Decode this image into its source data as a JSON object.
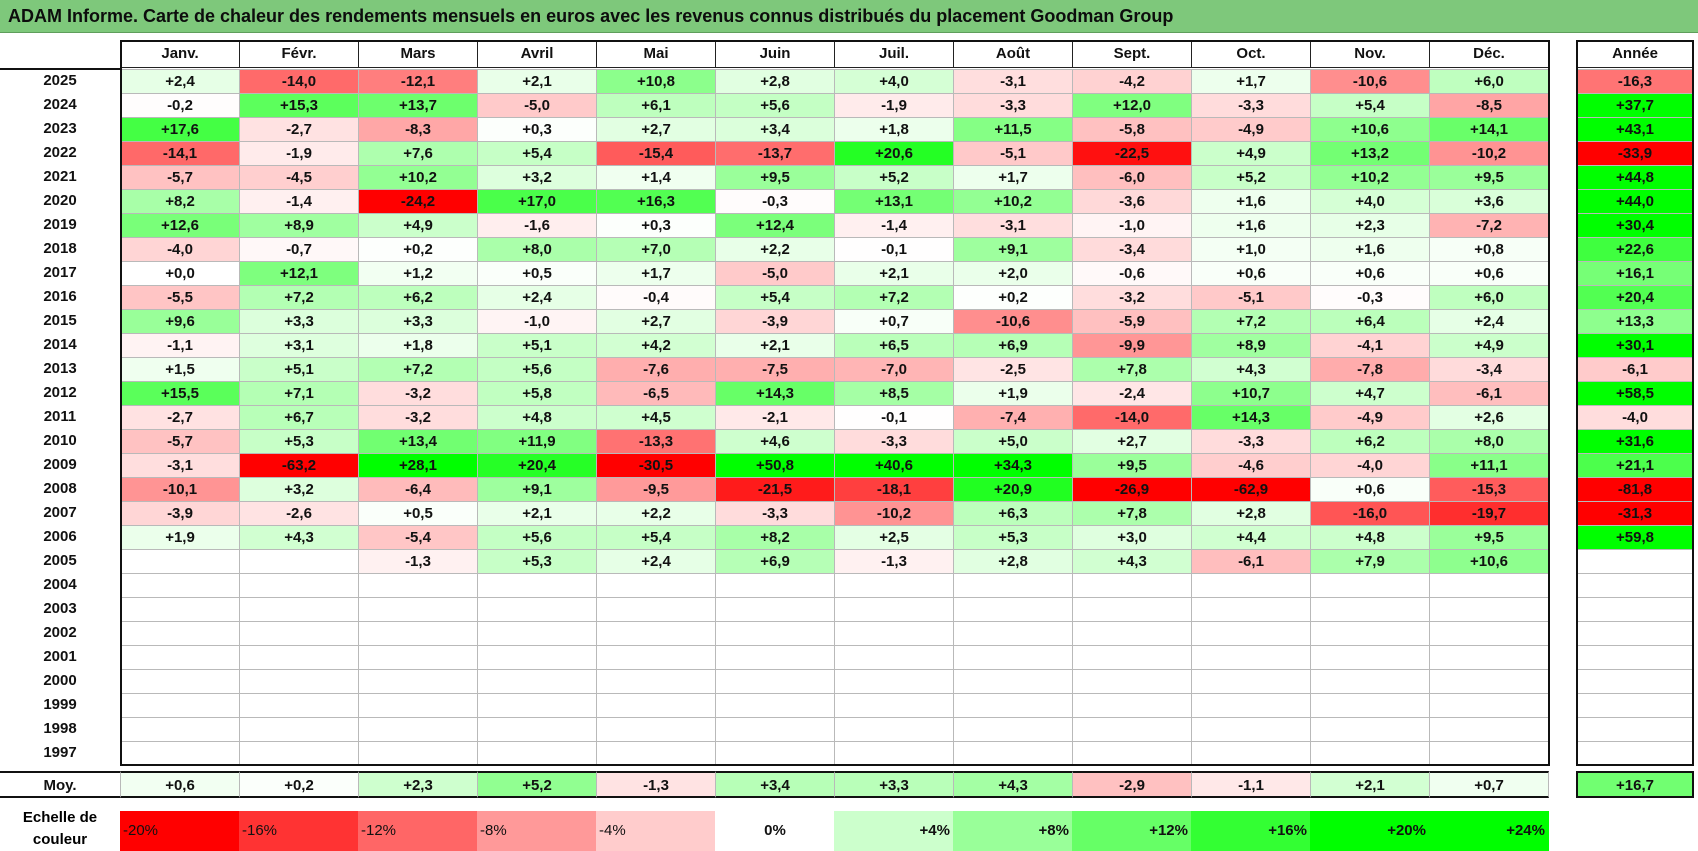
{
  "title": "ADAM Informe. Carte de chaleur des rendements mensuels en euros avec les revenus connus distribués du placement Goodman Group",
  "chart_data": {
    "type": "heatmap",
    "months": [
      "Janv.",
      "Févr.",
      "Mars",
      "Avril",
      "Mai",
      "Juin",
      "Juil.",
      "Août",
      "Sept.",
      "Oct.",
      "Nov.",
      "Déc."
    ],
    "annual_label": "Année",
    "rows": [
      {
        "year": "2025",
        "values": [
          "+2,4",
          "-14,0",
          "-12,1",
          "+2,1",
          "+10,8",
          "+2,8",
          "+4,0",
          "-3,1",
          "-4,2",
          "+1,7",
          "-10,6",
          "+6,0"
        ],
        "annual": "-16,3"
      },
      {
        "year": "2024",
        "values": [
          "-0,2",
          "+15,3",
          "+13,7",
          "-5,0",
          "+6,1",
          "+5,6",
          "-1,9",
          "-3,3",
          "+12,0",
          "-3,3",
          "+5,4",
          "-8,5"
        ],
        "annual": "+37,7"
      },
      {
        "year": "2023",
        "values": [
          "+17,6",
          "-2,7",
          "-8,3",
          "+0,3",
          "+2,7",
          "+3,4",
          "+1,8",
          "+11,5",
          "-5,8",
          "-4,9",
          "+10,6",
          "+14,1"
        ],
        "annual": "+43,1"
      },
      {
        "year": "2022",
        "values": [
          "-14,1",
          "-1,9",
          "+7,6",
          "+5,4",
          "-15,4",
          "-13,7",
          "+20,6",
          "-5,1",
          "-22,5",
          "+4,9",
          "+13,2",
          "-10,2"
        ],
        "annual": "-33,9"
      },
      {
        "year": "2021",
        "values": [
          "-5,7",
          "-4,5",
          "+10,2",
          "+3,2",
          "+1,4",
          "+9,5",
          "+5,2",
          "+1,7",
          "-6,0",
          "+5,2",
          "+10,2",
          "+9,5"
        ],
        "annual": "+44,8"
      },
      {
        "year": "2020",
        "values": [
          "+8,2",
          "-1,4",
          "-24,2",
          "+17,0",
          "+16,3",
          "-0,3",
          "+13,1",
          "+10,2",
          "-3,6",
          "+1,6",
          "+4,0",
          "+3,6"
        ],
        "annual": "+44,0"
      },
      {
        "year": "2019",
        "values": [
          "+12,6",
          "+8,9",
          "+4,9",
          "-1,6",
          "+0,3",
          "+12,4",
          "-1,4",
          "-3,1",
          "-1,0",
          "+1,6",
          "+2,3",
          "-7,2"
        ],
        "annual": "+30,4"
      },
      {
        "year": "2018",
        "values": [
          "-4,0",
          "-0,7",
          "+0,2",
          "+8,0",
          "+7,0",
          "+2,2",
          "-0,1",
          "+9,1",
          "-3,4",
          "+1,0",
          "+1,6",
          "+0,8"
        ],
        "annual": "+22,6"
      },
      {
        "year": "2017",
        "values": [
          "+0,0",
          "+12,1",
          "+1,2",
          "+0,5",
          "+1,7",
          "-5,0",
          "+2,1",
          "+2,0",
          "-0,6",
          "+0,6",
          "+0,6",
          "+0,6"
        ],
        "annual": "+16,1"
      },
      {
        "year": "2016",
        "values": [
          "-5,5",
          "+7,2",
          "+6,2",
          "+2,4",
          "-0,4",
          "+5,4",
          "+7,2",
          "+0,2",
          "-3,2",
          "-5,1",
          "-0,3",
          "+6,0"
        ],
        "annual": "+20,4"
      },
      {
        "year": "2015",
        "values": [
          "+9,6",
          "+3,3",
          "+3,3",
          "-1,0",
          "+2,7",
          "-3,9",
          "+0,7",
          "-10,6",
          "-5,9",
          "+7,2",
          "+6,4",
          "+2,4"
        ],
        "annual": "+13,3"
      },
      {
        "year": "2014",
        "values": [
          "-1,1",
          "+3,1",
          "+1,8",
          "+5,1",
          "+4,2",
          "+2,1",
          "+6,5",
          "+6,9",
          "-9,9",
          "+8,9",
          "-4,1",
          "+4,9"
        ],
        "annual": "+30,1"
      },
      {
        "year": "2013",
        "values": [
          "+1,5",
          "+5,1",
          "+7,2",
          "+5,6",
          "-7,6",
          "-7,5",
          "-7,0",
          "-2,5",
          "+7,8",
          "+4,3",
          "-7,8",
          "-3,4"
        ],
        "annual": "-6,1"
      },
      {
        "year": "2012",
        "values": [
          "+15,5",
          "+7,1",
          "-3,2",
          "+5,8",
          "-6,5",
          "+14,3",
          "+8,5",
          "+1,9",
          "-2,4",
          "+10,7",
          "+4,7",
          "-6,1"
        ],
        "annual": "+58,5"
      },
      {
        "year": "2011",
        "values": [
          "-2,7",
          "+6,7",
          "-3,2",
          "+4,8",
          "+4,5",
          "-2,1",
          "-0,1",
          "-7,4",
          "-14,0",
          "+14,3",
          "-4,9",
          "+2,6"
        ],
        "annual": "-4,0"
      },
      {
        "year": "2010",
        "values": [
          "-5,7",
          "+5,3",
          "+13,4",
          "+11,9",
          "-13,3",
          "+4,6",
          "-3,3",
          "+5,0",
          "+2,7",
          "-3,3",
          "+6,2",
          "+8,0"
        ],
        "annual": "+31,6"
      },
      {
        "year": "2009",
        "values": [
          "-3,1",
          "-63,2",
          "+28,1",
          "+20,4",
          "-30,5",
          "+50,8",
          "+40,6",
          "+34,3",
          "+9,5",
          "-4,6",
          "-4,0",
          "+11,1"
        ],
        "annual": "+21,1"
      },
      {
        "year": "2008",
        "values": [
          "-10,1",
          "+3,2",
          "-6,4",
          "+9,1",
          "-9,5",
          "-21,5",
          "-18,1",
          "+20,9",
          "-26,9",
          "-62,9",
          "+0,6",
          "-15,3"
        ],
        "annual": "-81,8"
      },
      {
        "year": "2007",
        "values": [
          "-3,9",
          "-2,6",
          "+0,5",
          "+2,1",
          "+2,2",
          "-3,3",
          "-10,2",
          "+6,3",
          "+7,8",
          "+2,8",
          "-16,0",
          "-19,7"
        ],
        "annual": "-31,3"
      },
      {
        "year": "2006",
        "values": [
          "+1,9",
          "+4,3",
          "-5,4",
          "+5,6",
          "+5,4",
          "+8,2",
          "+2,5",
          "+5,3",
          "+3,0",
          "+4,4",
          "+4,8",
          "+9,5"
        ],
        "annual": "+59,8"
      },
      {
        "year": "2005",
        "values": [
          "",
          "",
          "-1,3",
          "+5,3",
          "+2,4",
          "+6,9",
          "-1,3",
          "+2,8",
          "+4,3",
          "-6,1",
          "+7,9",
          "+10,6"
        ],
        "annual": ""
      },
      {
        "year": "2004",
        "values": [
          "",
          "",
          "",
          "",
          "",
          "",
          "",
          "",
          "",
          "",
          "",
          ""
        ],
        "annual": ""
      },
      {
        "year": "2003",
        "values": [
          "",
          "",
          "",
          "",
          "",
          "",
          "",
          "",
          "",
          "",
          "",
          ""
        ],
        "annual": ""
      },
      {
        "year": "2002",
        "values": [
          "",
          "",
          "",
          "",
          "",
          "",
          "",
          "",
          "",
          "",
          "",
          ""
        ],
        "annual": ""
      },
      {
        "year": "2001",
        "values": [
          "",
          "",
          "",
          "",
          "",
          "",
          "",
          "",
          "",
          "",
          "",
          ""
        ],
        "annual": ""
      },
      {
        "year": "2000",
        "values": [
          "",
          "",
          "",
          "",
          "",
          "",
          "",
          "",
          "",
          "",
          "",
          ""
        ],
        "annual": ""
      },
      {
        "year": "1999",
        "values": [
          "",
          "",
          "",
          "",
          "",
          "",
          "",
          "",
          "",
          "",
          "",
          ""
        ],
        "annual": ""
      },
      {
        "year": "1998",
        "values": [
          "",
          "",
          "",
          "",
          "",
          "",
          "",
          "",
          "",
          "",
          "",
          ""
        ],
        "annual": ""
      },
      {
        "year": "1997",
        "values": [
          "",
          "",
          "",
          "",
          "",
          "",
          "",
          "",
          "",
          "",
          "",
          ""
        ],
        "annual": ""
      }
    ],
    "average": {
      "label": "Moy.",
      "values": [
        "+0,6",
        "+0,2",
        "+2,3",
        "+5,2",
        "-1,3",
        "+3,4",
        "+3,3",
        "+4,3",
        "-2,9",
        "-1,1",
        "+2,1",
        "+0,7"
      ],
      "annual": "+16,7"
    },
    "legend": {
      "label_line1": "Echelle de",
      "label_line2": "couleur",
      "stops": [
        "-20%",
        "-16%",
        "-12%",
        "-8%",
        "-4%",
        "0%",
        "+4%",
        "+8%",
        "+12%",
        "+16%",
        "+20%",
        "+24%"
      ]
    },
    "colors": {
      "negative_max": "#ff0000",
      "neutral": "#ffffff",
      "positive_max": "#00ff00",
      "banner": "#7ec87b"
    }
  }
}
